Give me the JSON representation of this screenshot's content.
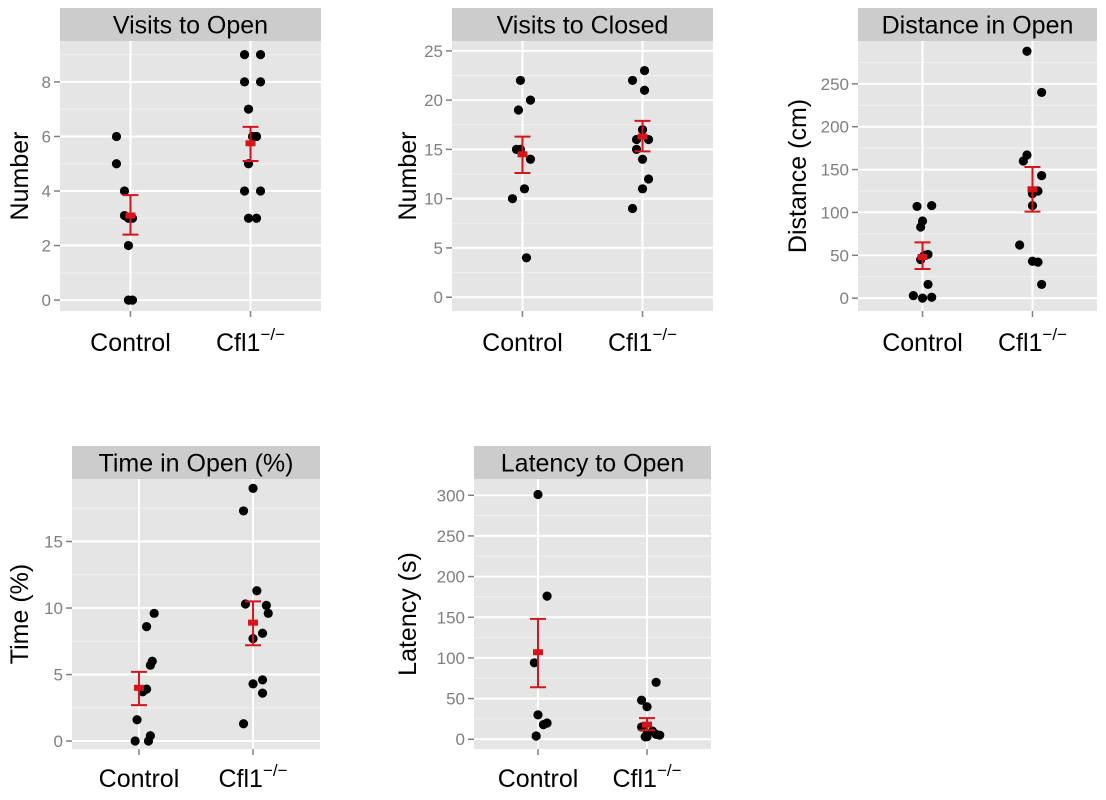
{
  "colors": {
    "panel_bg": "#e5e5e5",
    "strip_bg": "#cccccc",
    "grid_major": "#ffffff",
    "grid_minor": "#f2f2f2",
    "point": "#000000",
    "summary": "#d4161c",
    "tick_text": "#7f7f7f",
    "text": "#000000"
  },
  "chart_data": [
    {
      "type": "scatter",
      "title": "Visits to Open",
      "ylabel": "Number",
      "categories": [
        "Control",
        "Cfl1"
      ],
      "category_superscript": [
        "",
        "−/−"
      ],
      "ylim": [
        -0.4,
        9.5
      ],
      "yticks": [
        0,
        2,
        4,
        6,
        8
      ],
      "ytick_labels": [
        "0",
        "2",
        "4",
        "6",
        "8"
      ],
      "grid": true,
      "groups": [
        {
          "name": "Control",
          "points": [
            [
              -0.07,
              6.0
            ],
            [
              -0.07,
              5.0
            ],
            [
              -0.03,
              4.0
            ],
            [
              -0.03,
              3.1
            ],
            [
              -0.01,
              3.0
            ],
            [
              0.01,
              3.0
            ],
            [
              -0.01,
              2.0
            ],
            [
              -0.01,
              0.0
            ],
            [
              0.01,
              0.0
            ]
          ],
          "mean": 3.1,
          "se": [
            2.4,
            3.85
          ]
        },
        {
          "name": "Cfl1",
          "points": [
            [
              -0.03,
              9.0
            ],
            [
              0.05,
              9.0
            ],
            [
              -0.03,
              8.0
            ],
            [
              0.05,
              8.0
            ],
            [
              -0.01,
              7.0
            ],
            [
              0.01,
              6.0
            ],
            [
              0.03,
              6.0
            ],
            [
              -0.01,
              5.0
            ],
            [
              -0.03,
              4.0
            ],
            [
              0.05,
              4.0
            ],
            [
              -0.01,
              3.0
            ],
            [
              0.03,
              3.0
            ]
          ],
          "mean": 5.75,
          "se": [
            5.1,
            6.35
          ]
        }
      ]
    },
    {
      "type": "scatter",
      "title": "Visits to Closed",
      "ylabel": "Number",
      "categories": [
        "Control",
        "Cfl1"
      ],
      "category_superscript": [
        "",
        "−/−"
      ],
      "ylim": [
        -1.4,
        26
      ],
      "yticks": [
        0,
        5,
        10,
        15,
        20,
        25
      ],
      "ytick_labels": [
        "0",
        "5",
        "10",
        "15",
        "20",
        "25"
      ],
      "grid": true,
      "groups": [
        {
          "name": "Control",
          "points": [
            [
              -0.01,
              22.0
            ],
            [
              0.04,
              20.0
            ],
            [
              -0.02,
              19.0
            ],
            [
              -0.03,
              15.0
            ],
            [
              -0.01,
              15.0
            ],
            [
              0.04,
              14.0
            ],
            [
              0.01,
              11.0
            ],
            [
              -0.05,
              10.0
            ],
            [
              0.02,
              4.0
            ]
          ],
          "mean": 14.5,
          "se": [
            12.6,
            16.3
          ]
        },
        {
          "name": "Cfl1",
          "points": [
            [
              0.01,
              23.0
            ],
            [
              -0.05,
              22.0
            ],
            [
              0.01,
              21.0
            ],
            [
              0.0,
              17.0
            ],
            [
              -0.03,
              16.0
            ],
            [
              0.03,
              16.0
            ],
            [
              -0.03,
              15.0
            ],
            [
              0.0,
              14.0
            ],
            [
              0.03,
              12.0
            ],
            [
              0.0,
              11.0
            ],
            [
              -0.05,
              9.0
            ]
          ],
          "mean": 16.3,
          "se": [
            14.8,
            17.9
          ]
        }
      ]
    },
    {
      "type": "scatter",
      "title": "Distance in Open",
      "ylabel": "Distance (cm)",
      "categories": [
        "Control",
        "Cfl1"
      ],
      "category_superscript": [
        "",
        "−/−"
      ],
      "ylim": [
        -15,
        300
      ],
      "yticks": [
        0,
        50,
        100,
        150,
        200,
        250
      ],
      "ytick_labels": [
        "0",
        "50",
        "100",
        "150",
        "200",
        "250"
      ],
      "grid": true,
      "groups": [
        {
          "name": "Control",
          "points": [
            [
              -0.03,
              107
            ],
            [
              0.05,
              108
            ],
            [
              0.0,
              90
            ],
            [
              -0.01,
              83
            ],
            [
              0.03,
              51
            ],
            [
              0.01,
              50
            ],
            [
              -0.01,
              45
            ],
            [
              0.03,
              16
            ],
            [
              -0.05,
              3
            ],
            [
              0.05,
              1
            ],
            [
              0.0,
              0
            ]
          ],
          "mean": 48,
          "se": [
            34,
            65
          ]
        },
        {
          "name": "Cfl1",
          "points": [
            [
              -0.03,
              288
            ],
            [
              0.05,
              240
            ],
            [
              -0.03,
              167
            ],
            [
              -0.05,
              160
            ],
            [
              0.05,
              143
            ],
            [
              0.03,
              125
            ],
            [
              0.0,
              122
            ],
            [
              0.0,
              108
            ],
            [
              -0.07,
              62
            ],
            [
              0.0,
              43
            ],
            [
              0.03,
              42
            ],
            [
              0.05,
              16
            ]
          ],
          "mean": 127,
          "se": [
            101,
            153
          ]
        }
      ]
    },
    {
      "type": "scatter",
      "title": "Time in Open (%)",
      "ylabel": "Time (%)",
      "categories": [
        "Control",
        "Cfl1"
      ],
      "category_superscript": [
        "",
        "−/−"
      ],
      "ylim": [
        -0.6,
        19.7
      ],
      "yticks": [
        0,
        5,
        10,
        15
      ],
      "ytick_labels": [
        "0",
        "5",
        "10",
        "15"
      ],
      "grid": true,
      "groups": [
        {
          "name": "Control",
          "points": [
            [
              0.08,
              9.6
            ],
            [
              0.04,
              8.6
            ],
            [
              0.07,
              6.0
            ],
            [
              0.06,
              5.7
            ],
            [
              0.02,
              3.7
            ],
            [
              0.04,
              3.9
            ],
            [
              -0.01,
              1.6
            ],
            [
              0.06,
              0.4
            ],
            [
              0.05,
              0.0
            ],
            [
              -0.02,
              0.0
            ]
          ],
          "mean": 4.0,
          "se": [
            2.7,
            5.2
          ]
        },
        {
          "name": "Cfl1",
          "points": [
            [
              0.0,
              19.0
            ],
            [
              -0.05,
              17.3
            ],
            [
              0.02,
              11.3
            ],
            [
              -0.04,
              10.3
            ],
            [
              0.07,
              10.2
            ],
            [
              0.08,
              9.6
            ],
            [
              0.05,
              8.1
            ],
            [
              0.0,
              7.7
            ],
            [
              0.05,
              4.6
            ],
            [
              0.0,
              4.3
            ],
            [
              0.05,
              3.6
            ],
            [
              -0.05,
              1.3
            ]
          ],
          "mean": 8.9,
          "se": [
            7.2,
            10.5
          ]
        }
      ]
    },
    {
      "type": "scatter",
      "title": "Latency to Open",
      "ylabel": "Latency (s)",
      "categories": [
        "Control",
        "Cfl1"
      ],
      "category_superscript": [
        "",
        "−/−"
      ],
      "ylim": [
        -12,
        320
      ],
      "yticks": [
        0,
        50,
        100,
        150,
        200,
        250,
        300
      ],
      "ytick_labels": [
        "0",
        "50",
        "100",
        "150",
        "200",
        "250",
        "300"
      ],
      "grid": true,
      "groups": [
        {
          "name": "Control",
          "points": [
            [
              0.0,
              301
            ],
            [
              0.05,
              176
            ],
            [
              -0.02,
              94
            ],
            [
              0.0,
              30
            ],
            [
              0.05,
              20
            ],
            [
              0.03,
              18
            ],
            [
              -0.01,
              4
            ]
          ],
          "mean": 107,
          "se": [
            64,
            148
          ]
        },
        {
          "name": "Cfl1",
          "points": [
            [
              0.05,
              70
            ],
            [
              -0.03,
              48
            ],
            [
              0.0,
              40
            ],
            [
              -0.03,
              15
            ],
            [
              0.03,
              10
            ],
            [
              0.0,
              6
            ],
            [
              0.05,
              6
            ],
            [
              0.07,
              5
            ],
            [
              -0.01,
              3
            ],
            [
              0.0,
              3
            ]
          ],
          "mean": 18,
          "se": [
            11,
            26
          ]
        }
      ]
    }
  ]
}
